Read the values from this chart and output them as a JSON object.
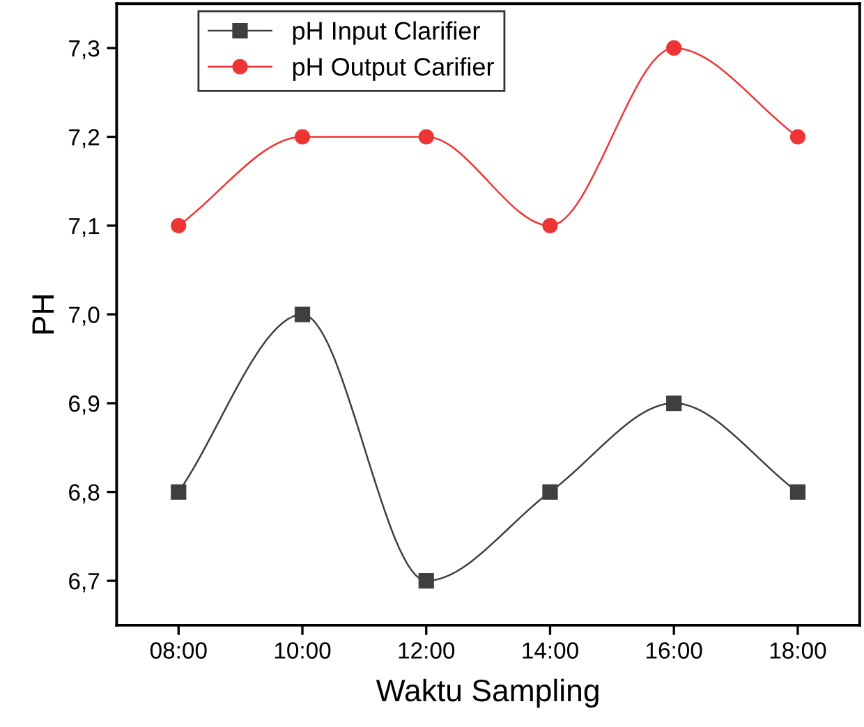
{
  "chart_data": {
    "type": "line",
    "xlabel": "Waktu Sampling",
    "ylabel": "PH",
    "categories": [
      "08:00",
      "10:00",
      "12:00",
      "14:00",
      "16:00",
      "18:00"
    ],
    "series": [
      {
        "name": "pH Input Clarifier",
        "color": "#3f3f3f",
        "marker": "square",
        "values": [
          6.8,
          7.0,
          6.7,
          6.8,
          6.9,
          6.8
        ]
      },
      {
        "name": "pH Output Carifier",
        "color": "#ee3535",
        "marker": "circle",
        "values": [
          7.1,
          7.2,
          7.2,
          7.1,
          7.3,
          7.2
        ]
      }
    ],
    "ylim": [
      6.65,
      7.35
    ],
    "yticks": [
      {
        "value": 6.7,
        "label": "6,7"
      },
      {
        "value": 6.8,
        "label": "6,8"
      },
      {
        "value": 6.9,
        "label": "6,9"
      },
      {
        "value": 7.0,
        "label": "7,0"
      },
      {
        "value": 7.1,
        "label": "7,1"
      },
      {
        "value": 7.2,
        "label": "7,2"
      },
      {
        "value": 7.3,
        "label": "7,3"
      }
    ],
    "line_style": "solid",
    "grid": false,
    "legend": "top left"
  }
}
